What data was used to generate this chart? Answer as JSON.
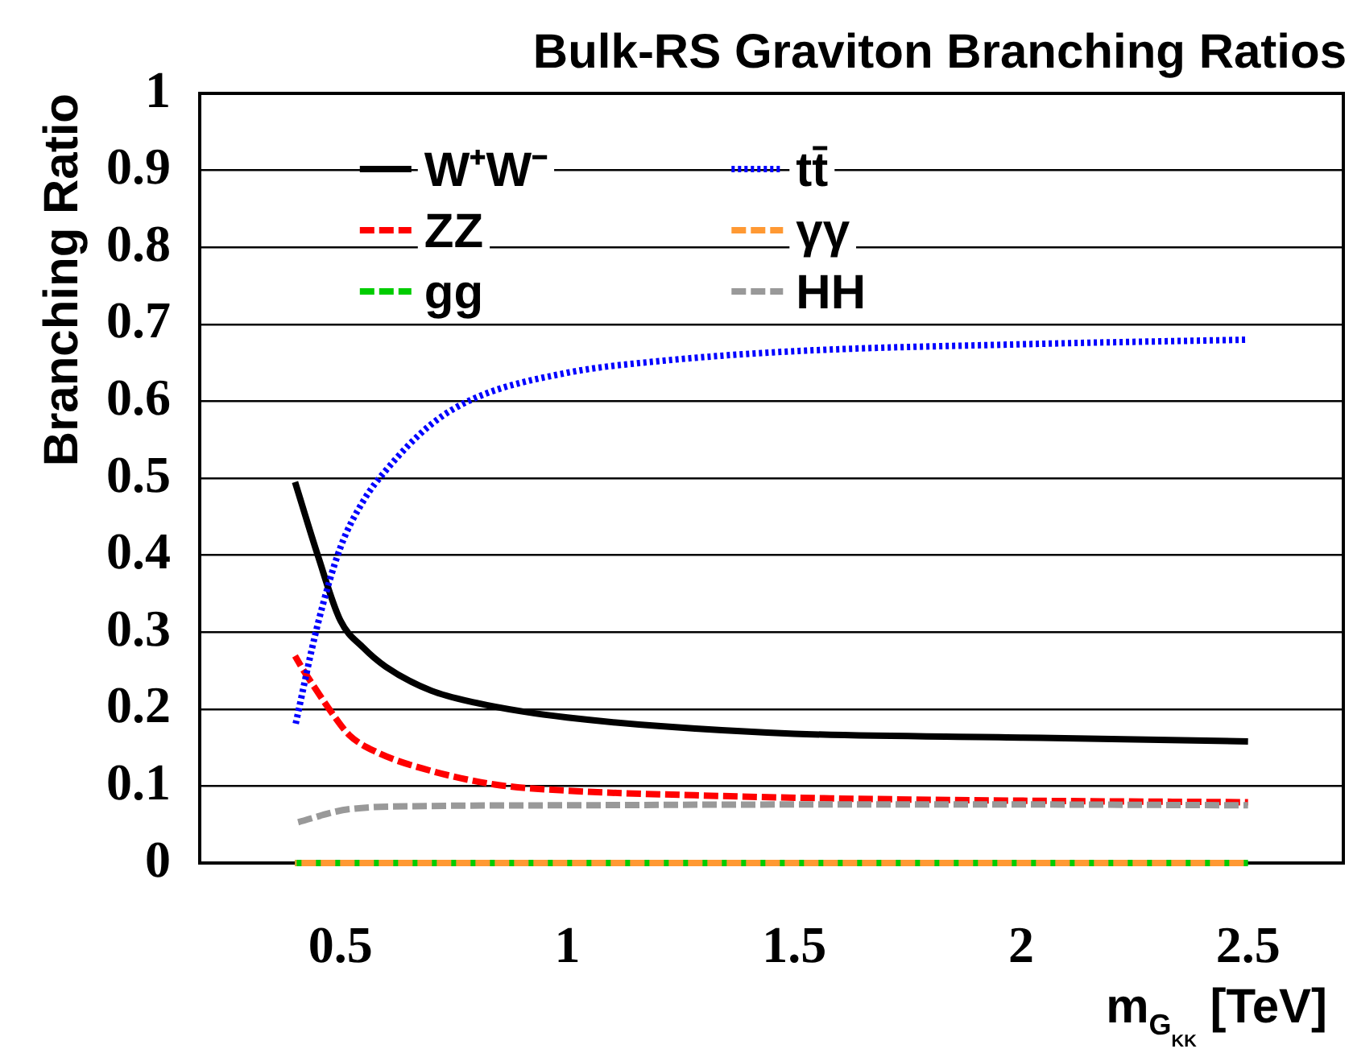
{
  "chart_data": {
    "type": "line",
    "title": "Bulk-RS Graviton Branching Ratios",
    "xlabel": "m$_{G}$$_{KK}$ [TeV]",
    "ylabel": "Branching Ratio",
    "xlim": [
      0.19,
      2.71
    ],
    "xticks": [
      0.5,
      1,
      1.5,
      2,
      2.5
    ],
    "ylim": [
      0,
      1
    ],
    "yticks": [
      0,
      0.1,
      0.2,
      0.3,
      0.4,
      0.5,
      0.6,
      0.7,
      0.8,
      0.9,
      1
    ],
    "grid": "y",
    "legend": "top",
    "marker": "none",
    "series": [
      {
        "name": "W⁺W⁻",
        "color": "#000000",
        "line_style": "solid",
        "x": [
          0.4,
          0.45,
          0.5,
          0.55,
          0.6,
          0.7,
          0.8,
          0.9,
          1.0,
          1.2,
          1.5,
          2.0,
          2.5
        ],
        "values": [
          0.495,
          0.4,
          0.315,
          0.28,
          0.255,
          0.224,
          0.208,
          0.197,
          0.189,
          0.178,
          0.168,
          0.163,
          0.158
        ]
      },
      {
        "name": "ZZ",
        "color": "#ff0000",
        "line_style": "dashed",
        "x": [
          0.4,
          0.42,
          0.44,
          0.48,
          0.52,
          0.58,
          0.68,
          0.84,
          1.0,
          1.28,
          1.58,
          2.0,
          2.5
        ],
        "values": [
          0.269,
          0.249,
          0.231,
          0.196,
          0.166,
          0.144,
          0.123,
          0.102,
          0.094,
          0.088,
          0.084,
          0.081,
          0.079
        ]
      },
      {
        "name": "gg",
        "color": "#00cc00",
        "line_style": "dashed",
        "x": [
          0.4,
          2.5
        ],
        "values": [
          0,
          0
        ]
      },
      {
        "name": "tt̄",
        "color": "#0000ff",
        "line_style": "dotted",
        "x": [
          0.4,
          0.45,
          0.5,
          0.55,
          0.6,
          0.7,
          0.8,
          1.0,
          1.2,
          1.5,
          2.0,
          2.5
        ],
        "values": [
          0.177,
          0.31,
          0.41,
          0.47,
          0.51,
          0.57,
          0.605,
          0.637,
          0.652,
          0.665,
          0.674,
          0.68
        ]
      },
      {
        "name": "γγ",
        "color": "#ff9933",
        "line_style": "dashed",
        "x": [
          0.4,
          2.5
        ],
        "values": [
          0,
          0
        ]
      },
      {
        "name": "HH",
        "color": "#999999",
        "line_style": "dashed",
        "x": [
          0.4,
          0.52,
          0.69,
          1.0,
          1.5,
          2.0,
          2.5
        ],
        "values": [
          0.052,
          0.07,
          0.074,
          0.075,
          0.076,
          0.076,
          0.075
        ]
      }
    ]
  }
}
